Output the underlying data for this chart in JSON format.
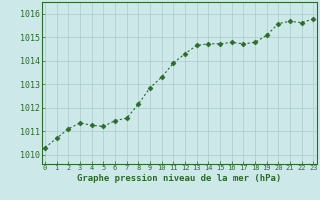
{
  "x": [
    0,
    1,
    2,
    3,
    4,
    5,
    6,
    7,
    8,
    9,
    10,
    11,
    12,
    13,
    14,
    15,
    16,
    17,
    18,
    19,
    20,
    21,
    22,
    23
  ],
  "y": [
    1010.3,
    1010.7,
    1011.1,
    1011.35,
    1011.25,
    1011.2,
    1011.45,
    1011.55,
    1012.15,
    1012.85,
    1013.3,
    1013.9,
    1014.3,
    1014.65,
    1014.72,
    1014.72,
    1014.78,
    1014.72,
    1014.78,
    1015.08,
    1015.58,
    1015.68,
    1015.62,
    1015.78
  ],
  "line_color": "#2d6a2d",
  "marker": "D",
  "markersize": 2.5,
  "bg_color": "#cce8e8",
  "grid_color": "#aacccc",
  "xlabel": "Graphe pression niveau de la mer (hPa)",
  "xlabel_color": "#2d6a2d",
  "tick_color": "#2d6a2d",
  "ylabel_ticks": [
    1010,
    1011,
    1012,
    1013,
    1014,
    1015,
    1016
  ],
  "ylim": [
    1009.6,
    1016.5
  ],
  "xlim": [
    -0.3,
    23.3
  ]
}
